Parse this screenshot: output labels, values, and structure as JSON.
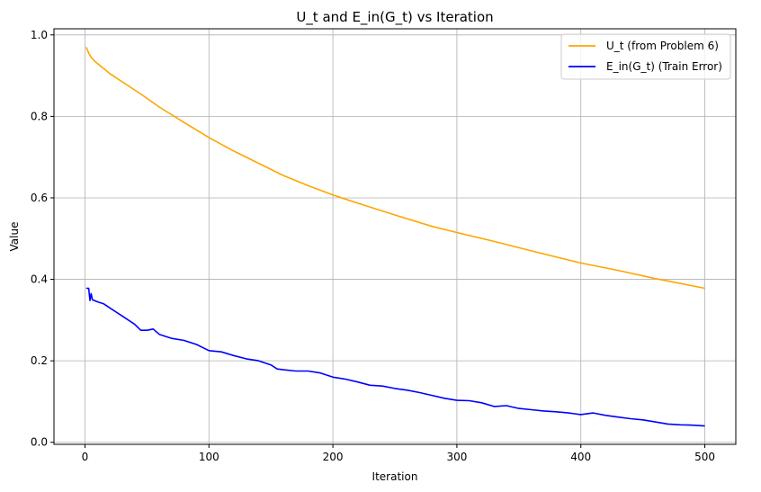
{
  "chart_data": {
    "type": "line",
    "title": "U_t and E_in(G_t) vs Iteration",
    "xlabel": "Iteration",
    "ylabel": "Value",
    "xlim": [
      -25,
      525
    ],
    "ylim": [
      -0.005,
      1.015
    ],
    "xticks": [
      0,
      100,
      200,
      300,
      400,
      500
    ],
    "yticks": [
      0.0,
      0.2,
      0.4,
      0.6,
      0.8,
      1.0
    ],
    "xtick_labels": [
      "0",
      "100",
      "200",
      "300",
      "400",
      "500"
    ],
    "ytick_labels": [
      "0.0",
      "0.2",
      "0.4",
      "0.6",
      "0.8",
      "1.0"
    ],
    "grid": true,
    "legend_position": "top-right",
    "series": [
      {
        "name": "U_t (from Problem 6)",
        "color": "#ffa500",
        "x": [
          1,
          2,
          3,
          5,
          8,
          12,
          20,
          30,
          45,
          60,
          80,
          100,
          120,
          140,
          160,
          180,
          200,
          220,
          250,
          280,
          300,
          330,
          360,
          400,
          430,
          460,
          500
        ],
        "y": [
          0.97,
          0.963,
          0.955,
          0.945,
          0.935,
          0.925,
          0.905,
          0.885,
          0.855,
          0.823,
          0.785,
          0.748,
          0.715,
          0.685,
          0.655,
          0.63,
          0.607,
          0.587,
          0.558,
          0.53,
          0.515,
          0.493,
          0.47,
          0.44,
          0.422,
          0.402,
          0.378
        ]
      },
      {
        "name": "E_in(G_t) (Train Error)",
        "color": "#0000ff",
        "x": [
          1,
          3,
          4,
          5,
          6,
          10,
          15,
          20,
          30,
          40,
          45,
          50,
          55,
          60,
          70,
          80,
          90,
          100,
          110,
          120,
          130,
          140,
          150,
          155,
          160,
          170,
          180,
          190,
          200,
          210,
          220,
          230,
          240,
          250,
          260,
          270,
          280,
          290,
          300,
          310,
          320,
          330,
          340,
          350,
          360,
          370,
          380,
          390,
          400,
          410,
          420,
          430,
          440,
          450,
          460,
          470,
          480,
          490,
          500
        ],
        "y": [
          0.378,
          0.378,
          0.348,
          0.365,
          0.35,
          0.345,
          0.34,
          0.33,
          0.31,
          0.29,
          0.275,
          0.275,
          0.278,
          0.265,
          0.255,
          0.25,
          0.24,
          0.225,
          0.222,
          0.213,
          0.205,
          0.2,
          0.19,
          0.18,
          0.178,
          0.175,
          0.175,
          0.17,
          0.16,
          0.155,
          0.148,
          0.14,
          0.138,
          0.132,
          0.128,
          0.122,
          0.115,
          0.108,
          0.103,
          0.102,
          0.097,
          0.088,
          0.09,
          0.083,
          0.08,
          0.077,
          0.075,
          0.072,
          0.068,
          0.072,
          0.066,
          0.062,
          0.058,
          0.055,
          0.05,
          0.045,
          0.043,
          0.042,
          0.04
        ]
      }
    ]
  }
}
